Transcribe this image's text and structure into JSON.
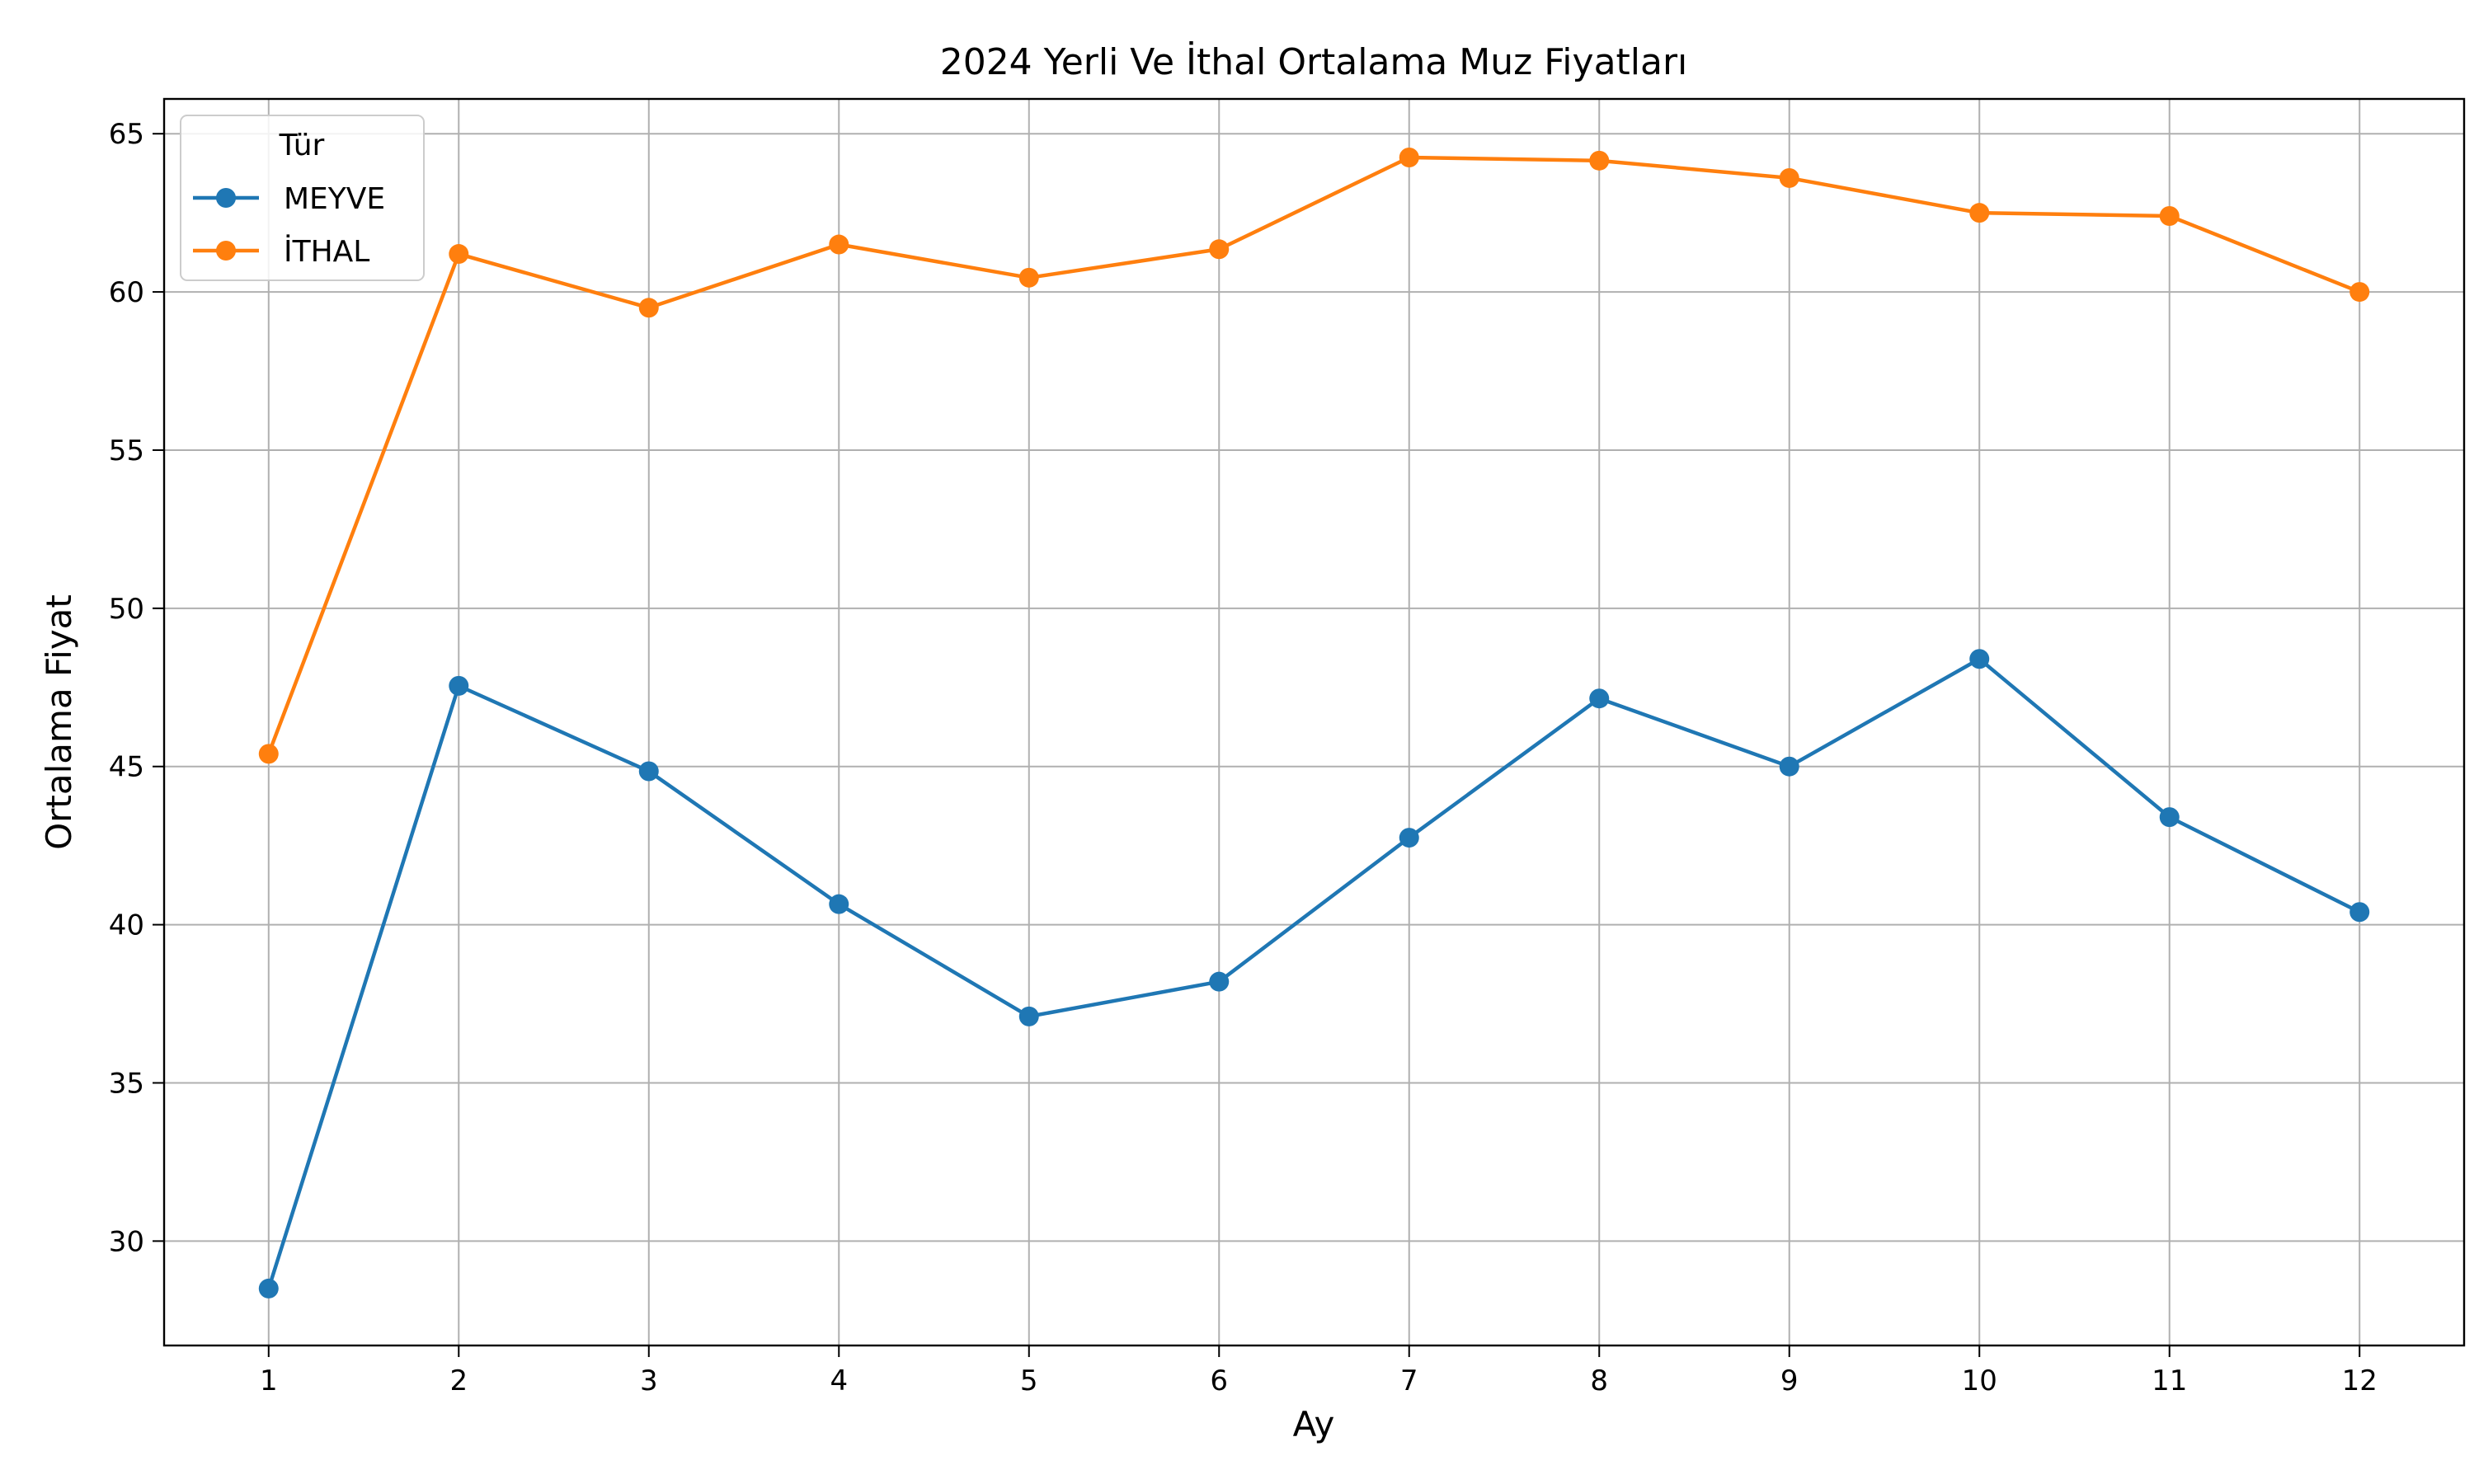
{
  "chart_data": {
    "type": "line",
    "title": "2024 Yerli Ve İthal Ortalama Muz Fiyatları",
    "xlabel": "Ay",
    "ylabel": "Ortalama Fiyat",
    "x": [
      1,
      2,
      3,
      4,
      5,
      6,
      7,
      8,
      9,
      10,
      11,
      12
    ],
    "xticks": [
      "1",
      "2",
      "3",
      "4",
      "5",
      "6",
      "7",
      "8",
      "9",
      "10",
      "11",
      "12"
    ],
    "yticks": [
      30,
      35,
      40,
      45,
      50,
      55,
      60,
      65
    ],
    "xlim": [
      0.45,
      12.55
    ],
    "ylim": [
      26.7,
      66.1
    ],
    "grid": true,
    "legend": {
      "title": "Tür",
      "placement": "top-left"
    },
    "series": [
      {
        "name": " MEYVE",
        "color": "#1f77b4",
        "values": [
          28.5,
          47.55,
          44.85,
          40.65,
          37.1,
          38.2,
          42.75,
          47.15,
          45.0,
          48.4,
          43.4,
          40.4
        ]
      },
      {
        "name": "İTHAL",
        "color": "#ff7f0e",
        "values": [
          45.4,
          61.2,
          59.5,
          61.5,
          60.45,
          61.35,
          64.25,
          64.15,
          63.6,
          62.5,
          62.4,
          60.0
        ]
      }
    ]
  }
}
